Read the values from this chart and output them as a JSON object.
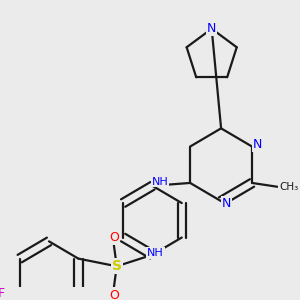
{
  "bg_color": "#ebebeb",
  "bond_color": "#1a1a1a",
  "N_color": "#0000ff",
  "S_color": "#cccc00",
  "O_color": "#ff0000",
  "F_color": "#cc00cc",
  "figsize": [
    3.0,
    3.0
  ],
  "dpi": 100,
  "xlim": [
    0,
    300
  ],
  "ylim": [
    0,
    300
  ]
}
